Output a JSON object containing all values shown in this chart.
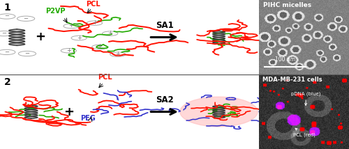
{
  "top_panel_bg": "#f9c8c8",
  "bottom_panel_bg": "#c8c0e0",
  "panel1_label": "1",
  "panel2_label": "2",
  "sa1_label": "SA1",
  "sa2_label": "SA2",
  "pcl_color": "#ff1100",
  "p2vp_color": "#22aa00",
  "peg_color": "#3333cc",
  "dna_color": "#333333",
  "charge_color": "#aaaaaa",
  "pihc_title": "PIHC micelles",
  "mda_title": "MDA-MB-231 cells",
  "pdna_label": "pDNA (blue)",
  "pcl_red_label": "PCL (red)",
  "scale_bar": "100 nm",
  "figwidth": 5.0,
  "figheight": 2.14,
  "dpi": 100
}
